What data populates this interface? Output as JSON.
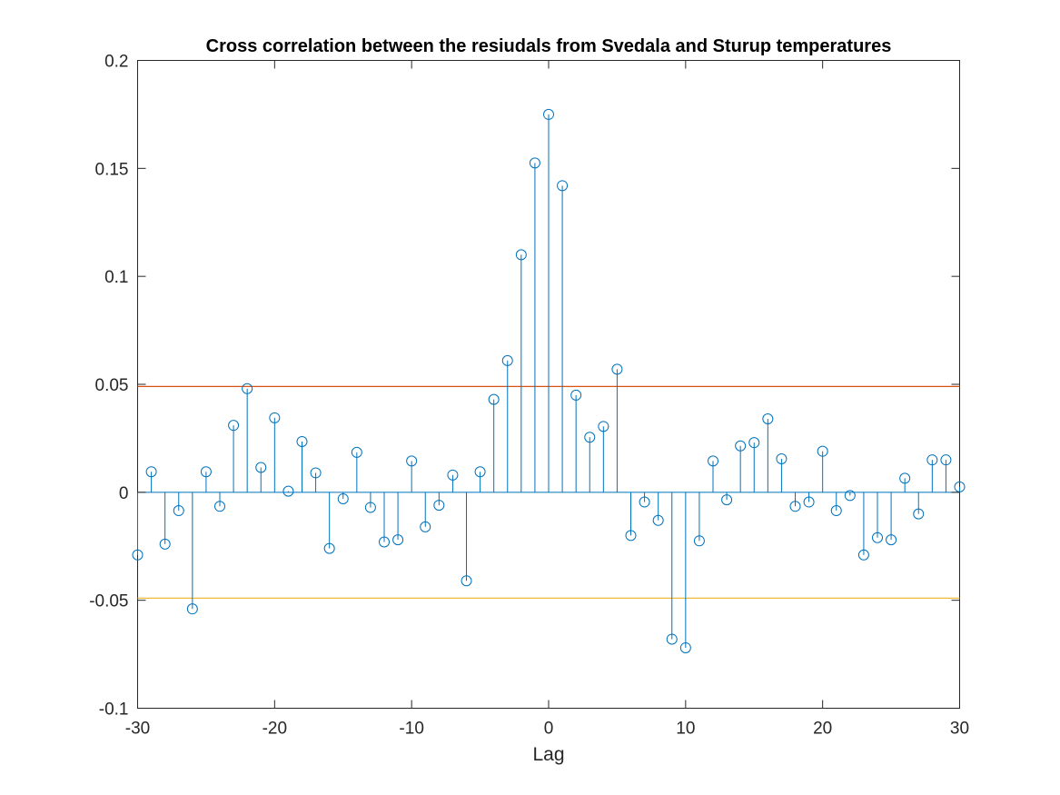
{
  "chart_data": {
    "type": "stem",
    "title": "Cross correlation between the resiudals from Svedala and Sturup temperatures",
    "xlabel": "Lag",
    "ylabel": "",
    "xlim": [
      -30,
      30
    ],
    "ylim": [
      -0.1,
      0.2
    ],
    "xticks": [
      "-30",
      "-20",
      "-10",
      "0",
      "10",
      "20",
      "30"
    ],
    "yticks": [
      "-0.1",
      "-0.05",
      "0",
      "0.05",
      "0.1",
      "0.15",
      "0.2"
    ],
    "grid": false,
    "colors": {
      "stem": "#0072BD",
      "upper_bound": "#D95319",
      "lower_bound": "#EDB120",
      "axes": "#262626"
    },
    "series": [
      {
        "x": [
          -30,
          -29,
          -28,
          -27,
          -26,
          -25,
          -24,
          -23,
          -22,
          -21,
          -20,
          -19,
          -18,
          -17,
          -16,
          -15,
          -14,
          -13,
          -12,
          -11,
          -10,
          -9,
          -8,
          -7,
          -6,
          -5,
          -4,
          -3,
          -2,
          -1,
          0,
          1,
          2,
          3,
          4,
          5,
          6,
          7,
          8,
          9,
          10,
          11,
          12,
          13,
          14,
          15,
          16,
          17,
          18,
          19,
          20,
          21,
          22,
          23,
          24,
          25,
          26,
          27,
          28,
          29,
          30
        ],
        "values": [
          -0.029,
          0.0095,
          -0.024,
          -0.0085,
          -0.054,
          0.0095,
          -0.0065,
          0.031,
          0.048,
          0.0115,
          0.0345,
          0.0005,
          0.0235,
          0.009,
          -0.026,
          -0.003,
          0.0185,
          -0.007,
          -0.023,
          -0.022,
          0.0145,
          -0.016,
          -0.006,
          0.008,
          -0.041,
          0.0095,
          0.043,
          0.061,
          0.11,
          0.1525,
          0.175,
          0.142,
          0.045,
          0.0255,
          0.0305,
          0.057,
          -0.02,
          -0.0045,
          -0.013,
          -0.068,
          -0.072,
          -0.0225,
          0.0145,
          -0.0035,
          0.0215,
          0.023,
          0.034,
          0.0155,
          -0.0065,
          -0.0045,
          0.019,
          -0.0085,
          -0.0015,
          -0.029,
          -0.021,
          -0.022,
          0.0065,
          -0.01,
          0.015,
          0.015,
          0.0025
        ]
      }
    ],
    "confidence_bounds": {
      "upper": 0.049,
      "lower": -0.049
    }
  }
}
